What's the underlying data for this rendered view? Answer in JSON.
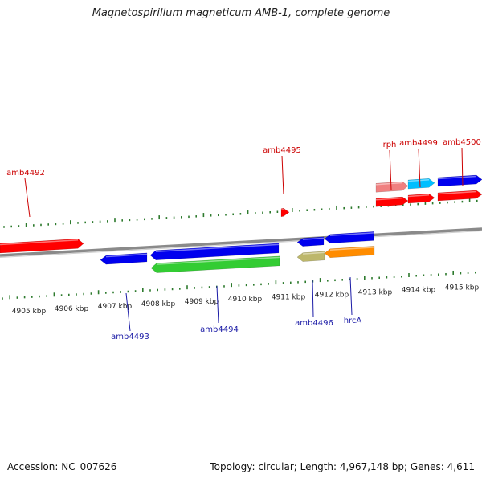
{
  "title": "Magnetospirillum magneticum AMB-1, complete genome",
  "footer": {
    "accession": "Accession: NC_007626",
    "summary": "Topology: circular; Length: 4,967,148 bp; Genes: 4,611"
  },
  "colors": {
    "backbone": "#8a8a8a",
    "tick": "#2d7a2d",
    "label_forward": "#cc0000",
    "label_reverse": "#1a1aa6",
    "kbp_label": "#222222"
  },
  "scale": {
    "unit": "kbp",
    "ticks": [
      "4905 kbp",
      "4906 kbp",
      "4907 kbp",
      "4908 kbp",
      "4909 kbp",
      "4910 kbp",
      "4911 kbp",
      "4912 kbp",
      "4913 kbp",
      "4914 kbp",
      "4915 kbp"
    ]
  },
  "genes": [
    {
      "name": "amb4492",
      "strand": "+",
      "labeled": true,
      "color": "#ff0000"
    },
    {
      "name": "amb4493",
      "strand": "-",
      "labeled": true,
      "color": "#0000ee"
    },
    {
      "name": "amb4494",
      "strand": "-",
      "labeled": true,
      "color": "#0000ee"
    },
    {
      "name": "amb4494-product",
      "strand": "-",
      "labeled": false,
      "color": "#33cc33"
    },
    {
      "name": "amb4495",
      "strand": "+",
      "labeled": true,
      "color": "#ff0000"
    },
    {
      "name": "amb4496",
      "strand": "-",
      "labeled": true,
      "color": "#0000ee"
    },
    {
      "name": "amb4496-product",
      "strand": "-",
      "labeled": false,
      "color": "#bdb76b"
    },
    {
      "name": "hrcA",
      "strand": "-",
      "labeled": true,
      "color": "#0000ee"
    },
    {
      "name": "hrcA-product",
      "strand": "-",
      "labeled": false,
      "color": "#ff8c00"
    },
    {
      "name": "rph",
      "strand": "+",
      "labeled": true,
      "color": "#ff0000"
    },
    {
      "name": "rph-product",
      "strand": "+",
      "labeled": false,
      "color": "#f08080"
    },
    {
      "name": "amb4499",
      "strand": "+",
      "labeled": true,
      "color": "#ff0000"
    },
    {
      "name": "amb4499-product",
      "strand": "+",
      "labeled": false,
      "color": "#00bfff"
    },
    {
      "name": "amb4500",
      "strand": "+",
      "labeled": true,
      "color": "#ff0000"
    },
    {
      "name": "amb4500-product",
      "strand": "+",
      "labeled": false,
      "color": "#0000ee"
    }
  ]
}
